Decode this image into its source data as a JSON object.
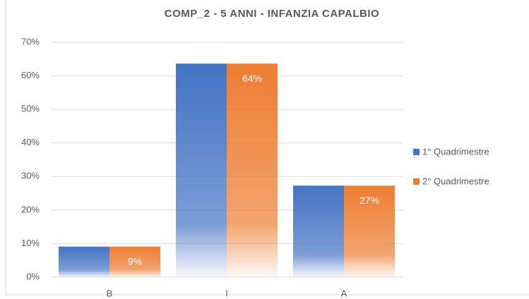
{
  "chart_data": {
    "type": "bar",
    "title": "COMP_2 - 5 ANNI - INFANZIA CAPALBIO",
    "categories": [
      "B",
      "I",
      "A"
    ],
    "series": [
      {
        "name": "1° Quadrimestre",
        "color": "#4472c4",
        "values": [
          9.09,
          63.64,
          27.27
        ]
      },
      {
        "name": "2° Quadrimestre",
        "color": "#ed7d31",
        "values": [
          9.09,
          63.64,
          27.27
        ],
        "value_labels": [
          "9%",
          "64%",
          "27%"
        ]
      }
    ],
    "ylim": [
      0,
      70
    ],
    "yticks": [
      {
        "value": 0,
        "label": "0%"
      },
      {
        "value": 10,
        "label": "10%"
      },
      {
        "value": 20,
        "label": "20%"
      },
      {
        "value": 30,
        "label": "30%"
      },
      {
        "value": 40,
        "label": "40%"
      },
      {
        "value": 50,
        "label": "50%"
      },
      {
        "value": 60,
        "label": "60%"
      },
      {
        "value": 70,
        "label": "70%"
      }
    ],
    "grid": true,
    "legend": "right"
  }
}
